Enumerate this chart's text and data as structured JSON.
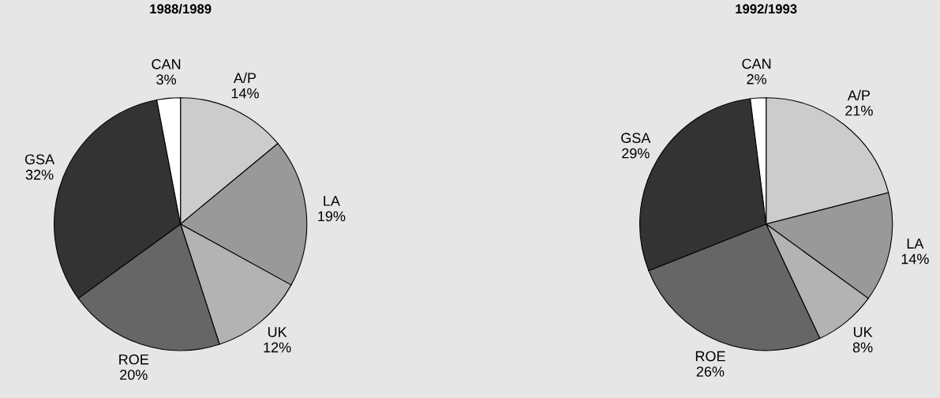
{
  "chart_data": [
    {
      "type": "pie",
      "title": "1988/1989",
      "categories": [
        "A/P",
        "LA",
        "UK",
        "ROE",
        "GSA",
        "CAN"
      ],
      "values": [
        14,
        19,
        12,
        20,
        32,
        3
      ],
      "value_labels": [
        "14%",
        "19%",
        "12%",
        "20%",
        "32%",
        "3%"
      ],
      "colors": [
        "#cccccc",
        "#999999",
        "#b3b3b3",
        "#666666",
        "#333333",
        "#ffffff"
      ]
    },
    {
      "type": "pie",
      "title": "1992/1993",
      "categories": [
        "A/P",
        "LA",
        "UK",
        "ROE",
        "GSA",
        "CAN"
      ],
      "values": [
        21,
        14,
        8,
        26,
        29,
        2
      ],
      "value_labels": [
        "21%",
        "14%",
        "8%",
        "26%",
        "29%",
        "2%"
      ],
      "colors": [
        "#cccccc",
        "#999999",
        "#b3b3b3",
        "#666666",
        "#333333",
        "#ffffff"
      ]
    }
  ]
}
